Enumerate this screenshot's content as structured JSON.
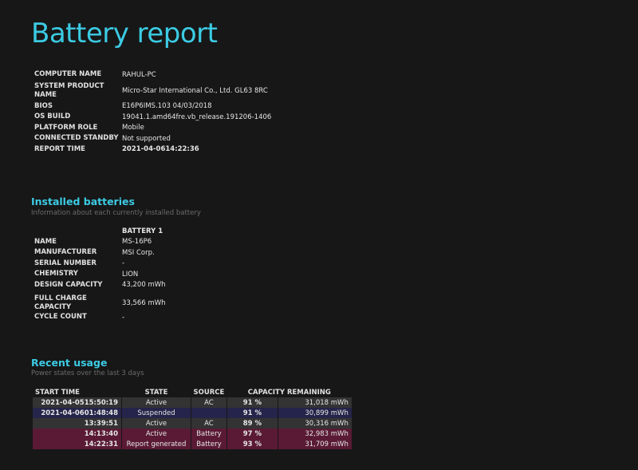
{
  "title": "Battery report",
  "system": [
    {
      "label": "COMPUTER NAME",
      "value": "RAHUL-PC"
    },
    {
      "label": "SYSTEM PRODUCT NAME",
      "value": "Micro-Star International Co., Ltd. GL63 8RC"
    },
    {
      "label": "BIOS",
      "value": "E16P6IMS.103 04/03/2018"
    },
    {
      "label": "OS BUILD",
      "value": "19041.1.amd64fre.vb_release.191206-1406"
    },
    {
      "label": "PLATFORM ROLE",
      "value": "Mobile"
    },
    {
      "label": "CONNECTED STANDBY",
      "value": "Not supported"
    },
    {
      "label": "REPORT TIME",
      "value": "2021-04-0614:22:36"
    }
  ],
  "installed": {
    "heading": "Installed batteries",
    "subtitle": "Information about each currently installed battery",
    "column": "BATTERY 1",
    "rows": [
      {
        "label": "NAME",
        "value": "MS-16P6"
      },
      {
        "label": "MANUFACTURER",
        "value": "MSI Corp."
      },
      {
        "label": "SERIAL NUMBER",
        "value": "-"
      },
      {
        "label": "CHEMISTRY",
        "value": "LION"
      },
      {
        "label": "DESIGN CAPACITY",
        "value": "43,200 mWh"
      },
      {
        "label": "FULL CHARGE CAPACITY",
        "value": "33,566 mWh"
      },
      {
        "label": "CYCLE COUNT",
        "value": "-"
      }
    ]
  },
  "recent": {
    "heading": "Recent usage",
    "subtitle": "Power states over the last 3 days",
    "headers": [
      "START TIME",
      "STATE",
      "SOURCE",
      "CAPACITY REMAINING"
    ],
    "colors": {
      "ac": "#333333",
      "suspended": "#25244a",
      "battery": "#5a1a35"
    },
    "rows": [
      {
        "time": "2021-04-0515:50:19",
        "state": "Active",
        "source": "AC",
        "percent": "91 %",
        "mwh": "31,018 mWh",
        "kind": "ac"
      },
      {
        "time": "2021-04-0601:48:48",
        "state": "Suspended",
        "source": "",
        "percent": "91 %",
        "mwh": "30,899 mWh",
        "kind": "suspended"
      },
      {
        "time": "13:39:51",
        "state": "Active",
        "source": "AC",
        "percent": "89 %",
        "mwh": "30,316 mWh",
        "kind": "ac"
      },
      {
        "time": "14:13:40",
        "state": "Active",
        "source": "Battery",
        "percent": "97 %",
        "mwh": "32,983 mWh",
        "kind": "battery"
      },
      {
        "time": "14:22:31",
        "state": "Report generated",
        "source": "Battery",
        "percent": "93 %",
        "mwh": "31,709 mWh",
        "kind": "battery"
      }
    ]
  }
}
